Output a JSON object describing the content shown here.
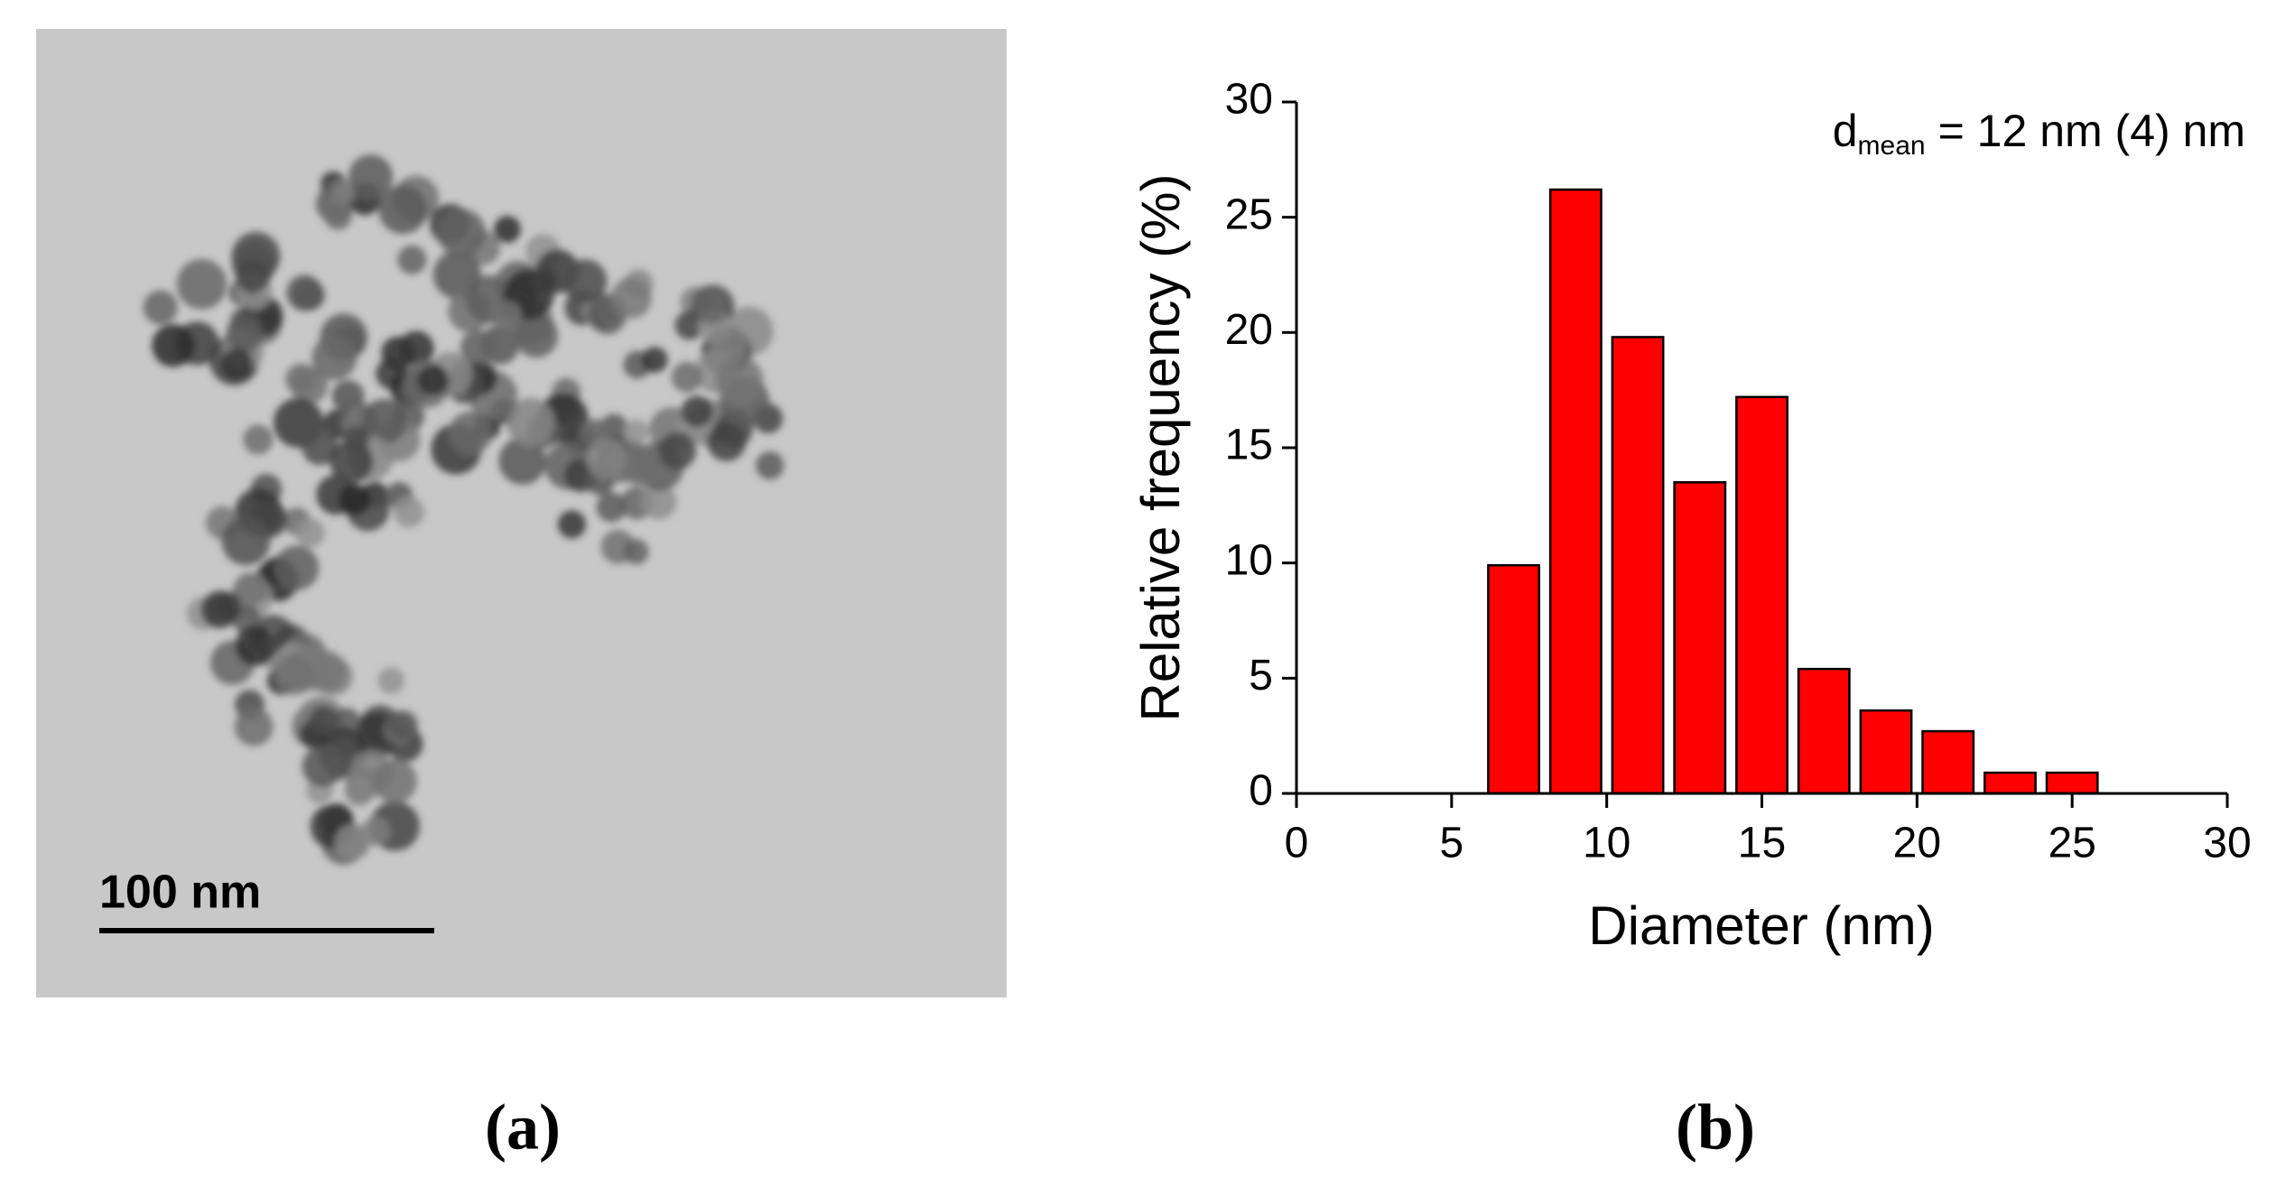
{
  "figure": {
    "scale_bar_label": "100 nm",
    "panel_a_label": "(a)",
    "panel_b_label": "(b)"
  },
  "chart_data": {
    "type": "histogram",
    "annotation": {
      "base": "d",
      "subscript": "mean",
      "text": "= 12 nm (4) nm"
    },
    "x_label": "Diameter (nm)",
    "y_label": "Relative frequency (%)",
    "bins": [
      6,
      8,
      10,
      12,
      14,
      16,
      18,
      20,
      22,
      24,
      26
    ],
    "values": [
      9.9,
      26.2,
      19.8,
      13.5,
      17.2,
      5.4,
      3.6,
      2.7,
      0.9,
      0.9
    ],
    "color": "#ff0000",
    "xlim": [
      0,
      30
    ],
    "xticks": [
      0,
      5,
      10,
      15,
      20,
      25,
      30
    ],
    "ylim": [
      0,
      30
    ],
    "yticks": [
      0,
      5,
      10,
      15,
      20,
      25,
      30
    ]
  }
}
